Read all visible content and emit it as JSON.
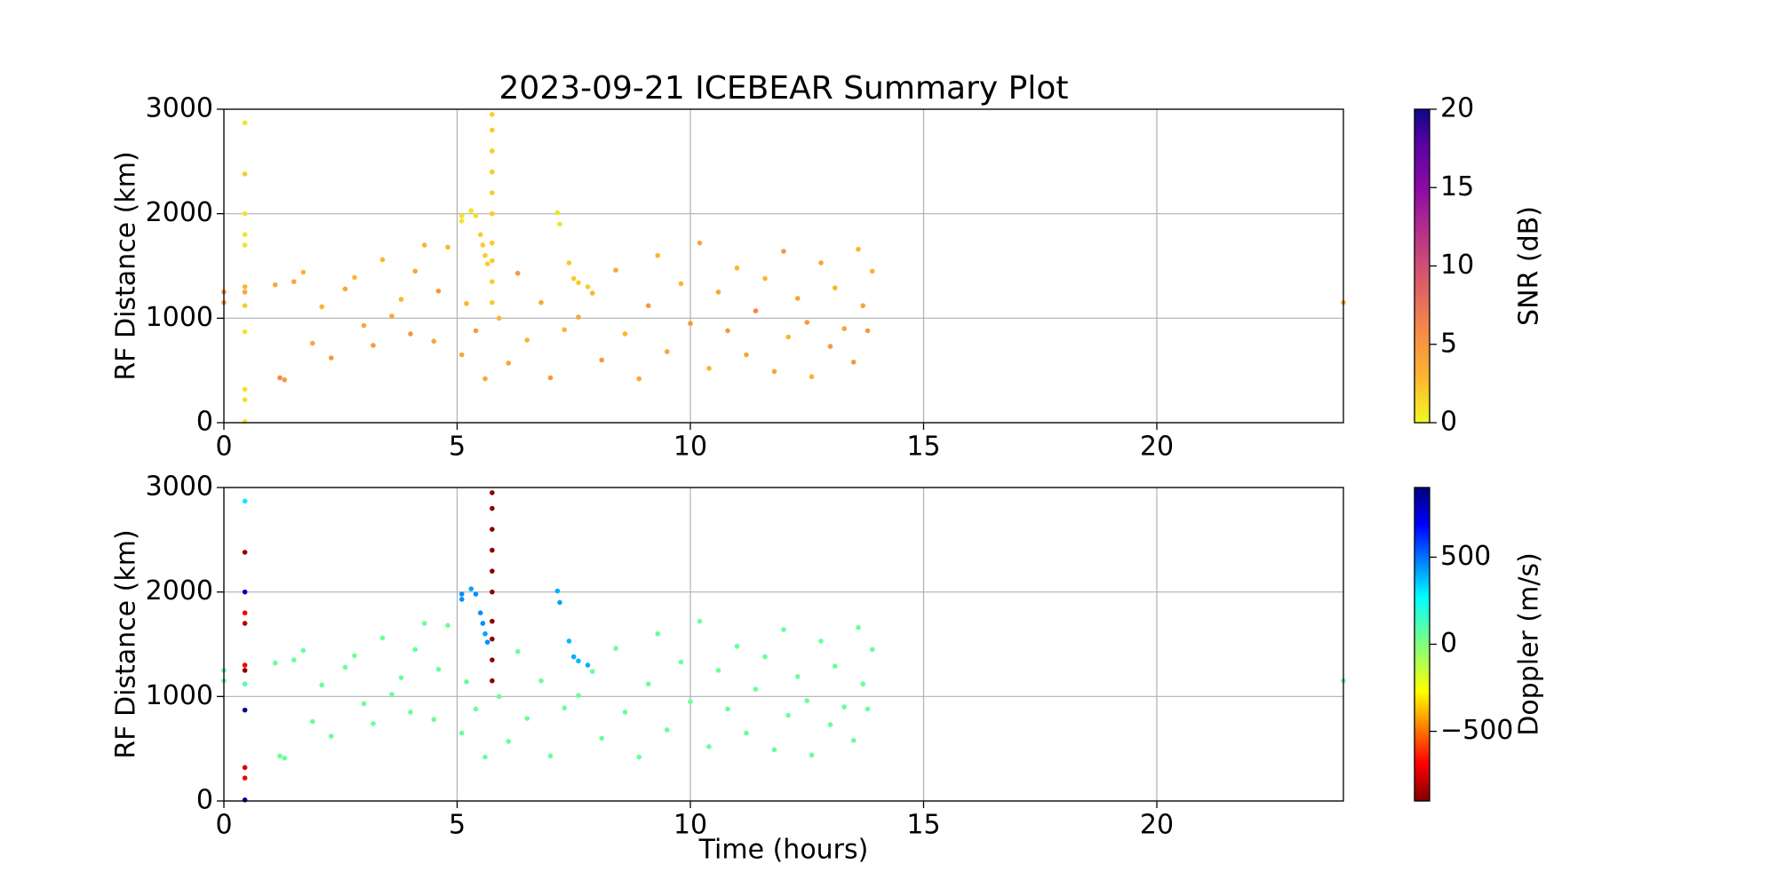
{
  "chart_data": [
    {
      "type": "scatter",
      "title": "2023-09-21 ICEBEAR Summary Plot",
      "y_label": "RF Distance (km)",
      "colorbar_label": "SNR (dB)",
      "colormap": "plasma_r",
      "clim": [
        0,
        20
      ],
      "cticks": [
        0,
        5,
        10,
        15,
        20
      ],
      "xlim": [
        0,
        24
      ],
      "xticks": [
        0,
        5,
        10,
        15,
        20
      ],
      "ylim": [
        0,
        3000
      ],
      "yticks": [
        0,
        1000,
        2000,
        3000
      ],
      "grid": true,
      "series": [
        {
          "x": [
            0.45,
            0.45,
            0.45,
            0.45,
            0.45,
            0.45,
            0.45,
            0.45,
            0.45,
            0.45,
            0.45,
            0.45,
            0,
            0,
            1.1,
            1.2,
            1.3,
            1.5,
            1.7,
            1.9,
            2.1,
            2.3,
            2.6,
            2.8,
            3.0,
            3.2,
            3.4,
            3.6,
            3.8,
            4.0,
            4.1,
            4.3,
            4.5,
            4.6,
            4.8,
            5.1,
            5.2,
            5.4,
            5.6,
            5.9,
            6.1,
            6.3,
            6.5,
            6.8,
            7.0,
            7.3,
            7.6,
            7.9,
            8.1,
            8.4,
            8.6,
            8.9,
            9.1,
            9.3,
            9.5,
            9.8,
            10.0,
            10.2,
            10.4,
            10.6,
            10.8,
            11.0,
            11.2,
            11.4,
            11.6,
            11.8,
            12.0,
            12.1,
            12.3,
            12.5,
            12.6,
            12.8,
            13.0,
            13.1,
            13.3,
            13.5,
            13.6,
            13.7,
            13.8,
            13.9,
            24,
            5.75,
            5.75,
            5.75,
            5.75,
            5.75,
            5.75,
            5.75,
            5.75,
            5.75,
            5.75,
            5.1,
            5.1,
            5.3,
            5.4,
            5.5,
            5.55,
            5.6,
            5.65,
            7.15,
            7.2,
            7.4,
            7.5,
            7.6,
            7.8
          ],
          "values": [
            2870,
            2380,
            2000,
            1800,
            1700,
            1300,
            1250,
            1120,
            870,
            320,
            220,
            10,
            1250,
            1150,
            1320,
            430,
            410,
            1350,
            1440,
            760,
            1110,
            620,
            1280,
            1390,
            930,
            740,
            1560,
            1020,
            1180,
            850,
            1450,
            1700,
            780,
            1260,
            1680,
            650,
            1140,
            880,
            420,
            1000,
            570,
            1430,
            790,
            1150,
            430,
            890,
            1010,
            1240,
            600,
            1460,
            850,
            420,
            1120,
            1600,
            680,
            1330,
            950,
            1720,
            520,
            1250,
            880,
            1480,
            650,
            1070,
            1380,
            490,
            1640,
            820,
            1190,
            960,
            440,
            1530,
            730,
            1290,
            900,
            580,
            1660,
            1120,
            880,
            1450,
            1150,
            2950,
            2800,
            2600,
            2400,
            2200,
            2000,
            1720,
            1550,
            1350,
            1150,
            1980,
            1930,
            2030,
            1980,
            1800,
            1700,
            1600,
            1520,
            2010,
            1900,
            1530,
            1380,
            1340,
            1300
          ],
          "c_values": [
            1,
            2,
            1,
            1,
            1,
            3,
            4,
            2,
            1,
            1,
            1,
            1,
            5,
            5,
            4,
            6,
            5,
            4,
            3,
            4,
            3,
            5,
            4,
            3,
            4,
            5,
            3,
            4,
            3,
            5,
            4,
            3,
            4,
            5,
            3,
            4,
            3,
            5,
            4,
            3,
            4,
            5,
            3,
            4,
            5,
            3,
            4,
            3,
            5,
            4,
            3,
            4,
            5,
            3,
            4,
            3,
            5,
            4,
            3,
            4,
            5,
            3,
            4,
            6,
            3,
            4,
            5,
            3,
            4,
            5,
            3,
            4,
            5,
            3,
            4,
            5,
            3,
            4,
            5,
            3,
            3,
            2,
            2,
            2,
            2,
            2,
            2,
            2,
            2,
            2,
            2,
            1,
            1,
            1,
            1,
            2,
            2,
            2,
            2,
            1,
            1,
            2,
            2,
            2,
            2
          ]
        }
      ]
    },
    {
      "type": "scatter",
      "x_label": "Time (hours)",
      "y_label": "RF Distance (km)",
      "colorbar_label": "Doppler (m/s)",
      "colormap": "jet_r",
      "clim": [
        -900,
        900
      ],
      "cticks": [
        {
          "value": -500,
          "label": "−500"
        },
        0,
        500
      ],
      "xlim": [
        0,
        24
      ],
      "xticks": [
        0,
        5,
        10,
        15,
        20
      ],
      "ylim": [
        0,
        3000
      ],
      "yticks": [
        0,
        1000,
        2000,
        3000
      ],
      "grid": true,
      "series": [
        {
          "x": [
            0.45,
            0.45,
            0.45,
            0.45,
            0.45,
            0.45,
            0.45,
            0.45,
            0.45,
            0.45,
            0.45,
            0.45,
            0,
            0,
            1.1,
            1.2,
            1.3,
            1.5,
            1.7,
            1.9,
            2.1,
            2.3,
            2.6,
            2.8,
            3.0,
            3.2,
            3.4,
            3.6,
            3.8,
            4.0,
            4.1,
            4.3,
            4.5,
            4.6,
            4.8,
            5.1,
            5.2,
            5.4,
            5.6,
            5.9,
            6.1,
            6.3,
            6.5,
            6.8,
            7.0,
            7.3,
            7.6,
            7.9,
            8.1,
            8.4,
            8.6,
            8.9,
            9.1,
            9.3,
            9.5,
            9.8,
            10.0,
            10.2,
            10.4,
            10.6,
            10.8,
            11.0,
            11.2,
            11.4,
            11.6,
            11.8,
            12.0,
            12.1,
            12.3,
            12.5,
            12.6,
            12.8,
            13.0,
            13.1,
            13.3,
            13.5,
            13.6,
            13.7,
            13.8,
            13.9,
            24,
            5.75,
            5.75,
            5.75,
            5.75,
            5.75,
            5.75,
            5.75,
            5.75,
            5.75,
            5.75,
            5.1,
            5.1,
            5.3,
            5.4,
            5.5,
            5.55,
            5.6,
            5.65,
            7.15,
            7.2,
            7.4,
            7.5,
            7.6,
            7.8
          ],
          "values": [
            2870,
            2380,
            2000,
            1800,
            1700,
            1300,
            1250,
            1120,
            870,
            320,
            220,
            10,
            1250,
            1150,
            1320,
            430,
            410,
            1350,
            1440,
            760,
            1110,
            620,
            1280,
            1390,
            930,
            740,
            1560,
            1020,
            1180,
            850,
            1450,
            1700,
            780,
            1260,
            1680,
            650,
            1140,
            880,
            420,
            1000,
            570,
            1430,
            790,
            1150,
            430,
            890,
            1010,
            1240,
            600,
            1460,
            850,
            420,
            1120,
            1600,
            680,
            1330,
            950,
            1720,
            520,
            1250,
            880,
            1480,
            650,
            1070,
            1380,
            490,
            1640,
            820,
            1190,
            960,
            440,
            1530,
            730,
            1290,
            900,
            580,
            1660,
            1120,
            880,
            1450,
            1150,
            2950,
            2800,
            2600,
            2400,
            2200,
            2000,
            1720,
            1550,
            1350,
            1150,
            1980,
            1930,
            2030,
            1980,
            1800,
            1700,
            1600,
            1520,
            2010,
            1900,
            1530,
            1380,
            1340,
            1300
          ],
          "c_values": [
            300,
            -850,
            800,
            -700,
            -800,
            -700,
            -880,
            100,
            850,
            -750,
            -700,
            850,
            50,
            50,
            50,
            50,
            50,
            50,
            50,
            50,
            50,
            50,
            50,
            50,
            50,
            50,
            50,
            50,
            50,
            50,
            50,
            50,
            50,
            50,
            50,
            50,
            50,
            50,
            50,
            50,
            50,
            50,
            50,
            50,
            50,
            50,
            50,
            50,
            50,
            50,
            50,
            50,
            50,
            50,
            50,
            50,
            50,
            50,
            50,
            50,
            50,
            50,
            50,
            50,
            50,
            50,
            50,
            50,
            50,
            50,
            50,
            50,
            50,
            50,
            50,
            50,
            50,
            50,
            50,
            50,
            50,
            -880,
            -880,
            -880,
            -880,
            -880,
            -880,
            -880,
            -880,
            -880,
            -880,
            450,
            450,
            420,
            450,
            450,
            450,
            420,
            450,
            400,
            420,
            380,
            400,
            380,
            400
          ]
        }
      ]
    }
  ]
}
